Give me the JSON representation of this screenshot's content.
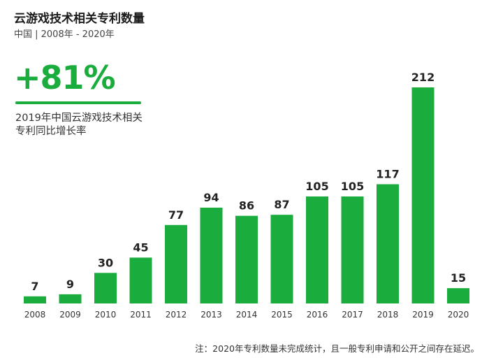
{
  "title": "云游戏技术相关专利数量",
  "subtitle": "中国 | 2008年 - 2020年",
  "highlight": {
    "value": "+81%",
    "description": "2019年中国云游戏技术相关专利同比增长率"
  },
  "note": "注：2020年专利数量未完成统计，且一般专利申请和公开之间存在延迟。",
  "colors": {
    "bar": "#1aac3c",
    "accent": "#1aac3c"
  },
  "chart_data": {
    "type": "bar",
    "title": "云游戏技术相关专利数量",
    "categories": [
      "2008",
      "2009",
      "2010",
      "2011",
      "2012",
      "2013",
      "2014",
      "2015",
      "2016",
      "2017",
      "2018",
      "2019",
      "2020"
    ],
    "values": [
      7,
      9,
      30,
      45,
      77,
      94,
      86,
      87,
      105,
      105,
      117,
      212,
      15
    ],
    "xlabel": "",
    "ylabel": "",
    "ylim": [
      0,
      212
    ],
    "grid": false,
    "data_labels": true
  }
}
